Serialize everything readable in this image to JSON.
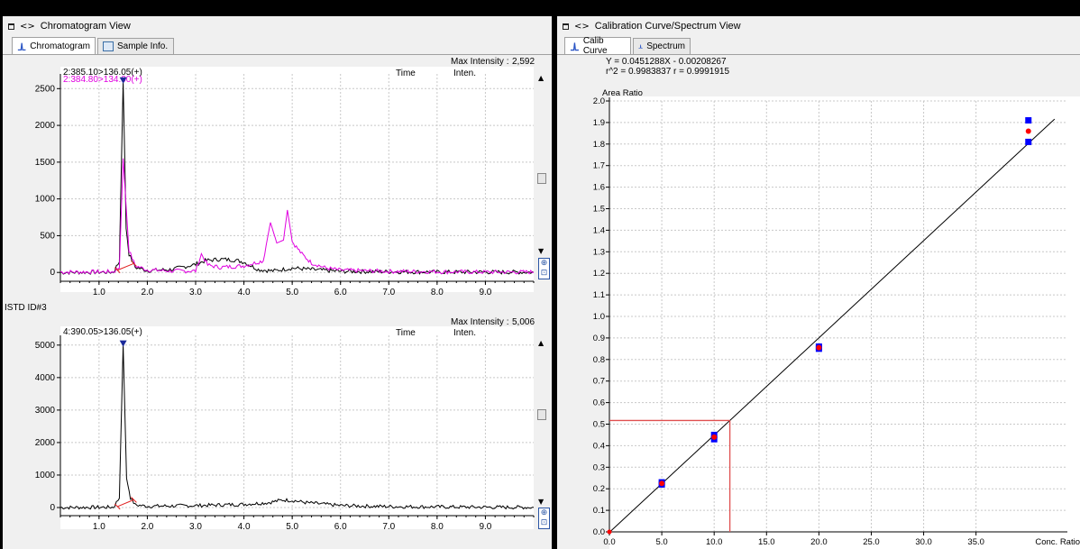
{
  "left_panel": {
    "title": "Chromatogram View",
    "tabs": [
      {
        "label": "Chromatogram",
        "active": true
      },
      {
        "label": "Sample Info.",
        "active": false
      }
    ],
    "top_chart": {
      "max_intensity_label": "Max Intensity :",
      "max_intensity_value": "2,592",
      "col_time": "Time",
      "col_inten": "Inten.",
      "traces": [
        {
          "label": "2:385.10>136.05(+)",
          "color": "#000000"
        },
        {
          "label": "2:384.80>134.00(+)",
          "color": "#e000e0"
        }
      ]
    },
    "istd_label": "ISTD ID#3",
    "bottom_chart": {
      "max_intensity_label": "Max Intensity :",
      "max_intensity_value": "5,006",
      "col_time": "Time",
      "col_inten": "Inten.",
      "traces": [
        {
          "label": "4:390.05>136.05(+)",
          "color": "#000000"
        }
      ]
    }
  },
  "right_panel": {
    "title": "Calibration Curve/Spectrum View",
    "tabs": [
      {
        "label": "Calib Curve",
        "active": true
      },
      {
        "label": "Spectrum",
        "active": false
      }
    ],
    "equation": "Y = 0.0451288X - 0.00208267",
    "r_stats": "r^2 = 0.9983837   r = 0.9991915"
  },
  "chart_data": [
    {
      "type": "line",
      "name": "chromatogram-top",
      "xlim": [
        0.2,
        10.0
      ],
      "ylim": [
        -120,
        2700
      ],
      "xticks": [
        "1.0",
        "2.0",
        "3.0",
        "4.0",
        "5.0",
        "6.0",
        "7.0",
        "8.0",
        "9.0"
      ],
      "yticks": [
        "0",
        "500",
        "1000",
        "1500",
        "2000",
        "2500"
      ],
      "series": [
        {
          "name": "2:385.10>136.05(+)",
          "color": "#000000",
          "points": [
            [
              0.2,
              0
            ],
            [
              1.3,
              5
            ],
            [
              1.42,
              150
            ],
            [
              1.5,
              2592
            ],
            [
              1.56,
              600
            ],
            [
              1.62,
              250
            ],
            [
              1.75,
              70
            ],
            [
              2.0,
              25
            ],
            [
              2.5,
              40
            ],
            [
              3.0,
              110
            ],
            [
              3.2,
              160
            ],
            [
              3.5,
              180
            ],
            [
              3.8,
              170
            ],
            [
              4.0,
              140
            ],
            [
              4.3,
              40
            ],
            [
              4.6,
              20
            ],
            [
              5.0,
              60
            ],
            [
              5.5,
              35
            ],
            [
              6.0,
              15
            ],
            [
              7.0,
              10
            ],
            [
              8.0,
              5
            ],
            [
              9.0,
              5
            ],
            [
              10.0,
              3
            ]
          ]
        },
        {
          "name": "2:384.80>134.00(+)",
          "color": "#e000e0",
          "points": [
            [
              0.2,
              5
            ],
            [
              1.3,
              10
            ],
            [
              1.42,
              70
            ],
            [
              1.5,
              1550
            ],
            [
              1.56,
              900
            ],
            [
              1.62,
              300
            ],
            [
              1.75,
              90
            ],
            [
              2.0,
              35
            ],
            [
              2.5,
              20
            ],
            [
              3.0,
              20
            ],
            [
              3.12,
              250
            ],
            [
              3.25,
              100
            ],
            [
              3.5,
              70
            ],
            [
              4.0,
              90
            ],
            [
              4.4,
              160
            ],
            [
              4.55,
              680
            ],
            [
              4.68,
              400
            ],
            [
              4.82,
              440
            ],
            [
              4.9,
              850
            ],
            [
              5.0,
              420
            ],
            [
              5.2,
              250
            ],
            [
              5.4,
              130
            ],
            [
              5.7,
              60
            ],
            [
              6.0,
              30
            ],
            [
              7.0,
              15
            ],
            [
              8.0,
              10
            ],
            [
              9.0,
              5
            ],
            [
              10.0,
              5
            ]
          ]
        }
      ]
    },
    {
      "type": "line",
      "name": "chromatogram-bottom",
      "xlim": [
        0.2,
        10.0
      ],
      "ylim": [
        -250,
        5300
      ],
      "xticks": [
        "1.0",
        "2.0",
        "3.0",
        "4.0",
        "5.0",
        "6.0",
        "7.0",
        "8.0",
        "9.0"
      ],
      "yticks": [
        "0",
        "1000",
        "2000",
        "3000",
        "4000",
        "5000"
      ],
      "series": [
        {
          "name": "4:390.05>136.05(+)",
          "color": "#000000",
          "points": [
            [
              0.2,
              0
            ],
            [
              1.3,
              10
            ],
            [
              1.42,
              300
            ],
            [
              1.5,
              5006
            ],
            [
              1.57,
              900
            ],
            [
              1.65,
              300
            ],
            [
              1.75,
              80
            ],
            [
              2.0,
              40
            ],
            [
              3.0,
              60
            ],
            [
              4.0,
              100
            ],
            [
              4.5,
              150
            ],
            [
              4.8,
              230
            ],
            [
              5.0,
              220
            ],
            [
              5.3,
              150
            ],
            [
              6.0,
              60
            ],
            [
              7.0,
              30
            ],
            [
              8.0,
              20
            ],
            [
              9.0,
              10
            ],
            [
              10.0,
              5
            ]
          ]
        }
      ]
    },
    {
      "type": "scatter",
      "name": "calibration-curve",
      "xlabel": "Conc. Ratio",
      "ylabel": "Area Ratio",
      "xlim": [
        0,
        42
      ],
      "ylim": [
        0,
        2.0
      ],
      "xticks": [
        "0.0",
        "5.0",
        "10.0",
        "15.0",
        "20.0",
        "25.0",
        "30.0",
        "35.0"
      ],
      "yticks": [
        "0.0",
        "0.1",
        "0.2",
        "0.3",
        "0.4",
        "0.5",
        "0.6",
        "0.7",
        "0.8",
        "0.9",
        "1.0",
        "1.1",
        "1.2",
        "1.3",
        "1.4",
        "1.5",
        "1.6",
        "1.7",
        "1.8",
        "1.9",
        "2.0"
      ],
      "regression": {
        "slope": 0.0451288,
        "intercept": -0.00208267
      },
      "standards": [
        [
          5,
          0.23
        ],
        [
          5,
          0.22
        ],
        [
          10,
          0.45
        ],
        [
          10,
          0.43
        ],
        [
          20,
          0.86
        ],
        [
          20,
          0.85
        ],
        [
          40,
          1.91
        ],
        [
          40,
          1.81
        ]
      ],
      "means": [
        [
          5,
          0.225
        ],
        [
          10,
          0.44
        ],
        [
          20,
          0.855
        ],
        [
          40,
          1.86
        ]
      ],
      "sample": {
        "x": 11.5,
        "y": 0.517
      },
      "colors": {
        "standard": "#0000ff",
        "mean": "#ff0000",
        "fit": "#000000",
        "sample": "#e05050"
      }
    }
  ]
}
